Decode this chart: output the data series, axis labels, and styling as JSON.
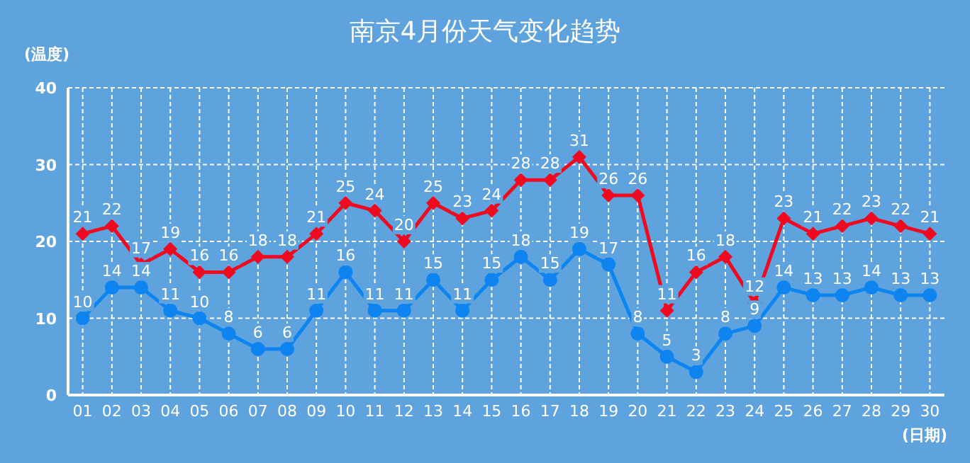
{
  "chart_data": {
    "type": "line",
    "title": "南京4月份天气变化趋势",
    "xlabel": "(日期)",
    "ylabel": "(温度)",
    "categories": [
      "01",
      "02",
      "03",
      "04",
      "05",
      "06",
      "07",
      "08",
      "09",
      "10",
      "11",
      "12",
      "13",
      "14",
      "15",
      "16",
      "17",
      "18",
      "19",
      "20",
      "21",
      "22",
      "23",
      "24",
      "25",
      "26",
      "27",
      "28",
      "29",
      "30"
    ],
    "series": [
      {
        "color": "#f0091f",
        "marker": "diamond",
        "values": [
          21,
          22,
          17,
          19,
          16,
          16,
          18,
          18,
          21,
          25,
          24,
          20,
          25,
          23,
          24,
          28,
          28,
          31,
          26,
          26,
          11,
          16,
          18,
          12,
          23,
          21,
          22,
          23,
          22,
          21
        ]
      },
      {
        "color": "#0d84ef",
        "marker": "circle",
        "values": [
          10,
          14,
          14,
          11,
          10,
          8,
          6,
          6,
          11,
          16,
          11,
          11,
          15,
          11,
          15,
          18,
          15,
          19,
          17,
          8,
          5,
          3,
          8,
          9,
          14,
          13,
          13,
          14,
          13,
          13
        ]
      }
    ],
    "ylim": [
      0,
      40
    ],
    "yticks": [
      0,
      10,
      20,
      30,
      40
    ],
    "grid": true,
    "data_labels": true,
    "line_style": "solid"
  }
}
